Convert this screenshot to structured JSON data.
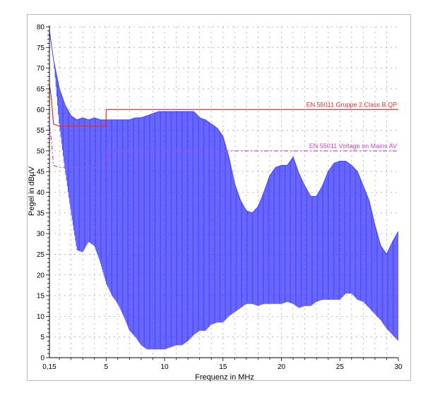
{
  "chart_data": {
    "type": "line",
    "xlabel": "Frequenz in MHz",
    "ylabel": "Pegel in dBµV",
    "xlim": [
      0.15,
      30
    ],
    "ylim": [
      0,
      80
    ],
    "x_ticks": [
      0.15,
      5,
      10,
      15,
      20,
      25,
      30
    ],
    "x_tick_labels": [
      "0,15",
      "5",
      "10",
      "15",
      "20",
      "25",
      "30"
    ],
    "y_ticks": [
      0,
      5,
      10,
      15,
      20,
      25,
      30,
      35,
      40,
      45,
      50,
      55,
      60,
      65,
      70,
      75,
      80
    ],
    "grid": true,
    "limit_lines": [
      {
        "name": "EN 55011 Gruppe 2 Class B QP",
        "color": "#e03030",
        "style": "solid",
        "x": [
          0.15,
          0.3,
          0.5,
          1.0,
          2.0,
          4.99,
          5.0,
          30.0
        ],
        "y": [
          66.0,
          63.0,
          56.5,
          56.0,
          56.0,
          56.0,
          60.0,
          60.0
        ]
      },
      {
        "name": "EN 55011 Voltage on Mains AV",
        "color": "#d040d0",
        "style": "dashed",
        "x": [
          0.15,
          0.3,
          0.5,
          1.0,
          2.0,
          4.99,
          5.0,
          30.0
        ],
        "y": [
          56.0,
          53.0,
          46.5,
          46.0,
          46.0,
          46.0,
          50.0,
          50.0
        ]
      }
    ],
    "series": [
      {
        "color": "#4040ff",
        "x": [
          0.15,
          0.3,
          0.5,
          1.0,
          1.5,
          2.0,
          2.5,
          3.0,
          3.5,
          4.0,
          4.5,
          5.0,
          5.5,
          6.0,
          6.5,
          7.0,
          7.5,
          8.0,
          8.5,
          9.0,
          9.5,
          10.0,
          10.5,
          11.0,
          11.5,
          12.0,
          12.5,
          13.0,
          13.5,
          14.0,
          14.5,
          15.0,
          15.5,
          16.0,
          16.5,
          17.0,
          17.5,
          18.0,
          18.5,
          19.0,
          19.5,
          20.0,
          20.5,
          21.0,
          21.5,
          22.0,
          22.5,
          23.0,
          23.5,
          24.0,
          24.5,
          25.0,
          25.5,
          26.0,
          26.5,
          27.0,
          27.5,
          28.0,
          28.5,
          29.0,
          29.5,
          30.0
        ],
        "upper": [
          79.0,
          76.0,
          72.0,
          65.0,
          61.0,
          58.5,
          57.5,
          58.0,
          57.5,
          58.0,
          57.5,
          57.5,
          57.5,
          57.5,
          57.5,
          57.5,
          58.0,
          58.0,
          58.5,
          59.0,
          59.5,
          59.5,
          59.5,
          59.5,
          59.5,
          59.5,
          59.5,
          58.0,
          57.5,
          56.5,
          55.5,
          53.5,
          48.5,
          42.0,
          38.0,
          35.5,
          35.0,
          36.5,
          40.0,
          44.0,
          46.0,
          46.5,
          46.5,
          48.5,
          44.5,
          41.5,
          39.0,
          39.0,
          41.5,
          45.0,
          47.0,
          47.5,
          47.5,
          46.5,
          45.0,
          41.5,
          38.0,
          32.0,
          27.0,
          25.0,
          28.0,
          30.5
        ],
        "lower": [
          79.0,
          76.0,
          72.0,
          56.0,
          45.0,
          35.0,
          26.0,
          25.5,
          28.0,
          27.0,
          23.0,
          18.0,
          15.0,
          13.0,
          10.0,
          6.5,
          5.0,
          3.0,
          2.0,
          2.0,
          2.0,
          2.0,
          2.5,
          3.0,
          3.0,
          4.0,
          5.5,
          6.5,
          6.5,
          8.0,
          8.5,
          8.5,
          10.0,
          11.0,
          12.0,
          13.0,
          13.0,
          12.5,
          13.0,
          13.0,
          13.0,
          13.0,
          13.5,
          13.0,
          12.0,
          12.5,
          12.5,
          13.5,
          14.0,
          14.0,
          14.0,
          14.0,
          15.5,
          15.5,
          14.0,
          13.5,
          12.0,
          10.5,
          9.0,
          7.0,
          5.5,
          4.0
        ]
      }
    ]
  }
}
